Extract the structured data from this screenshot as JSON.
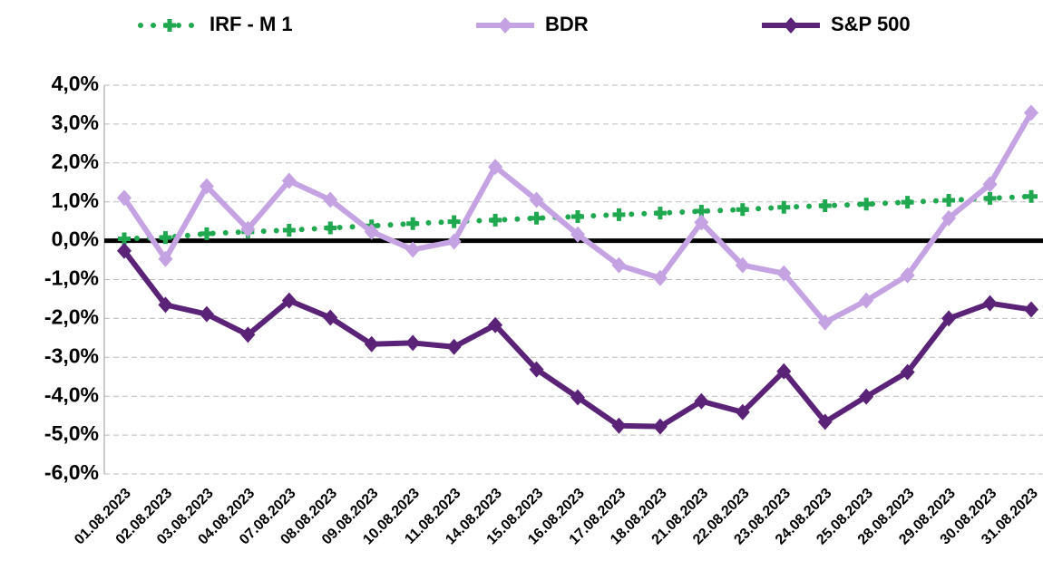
{
  "chart_data": {
    "type": "line",
    "categories": [
      "01.08.2023",
      "02.08.2023",
      "03.08.2023",
      "04.08.2023",
      "07.08.2023",
      "08.08.2023",
      "09.08.2023",
      "10.08.2023",
      "11.08.2023",
      "14.08.2023",
      "15.08.2023",
      "16.08.2023",
      "17.08.2023",
      "18.08.2023",
      "21.08.2023",
      "22.08.2023",
      "23.08.2023",
      "24.08.2023",
      "25.08.2023",
      "28.08.2023",
      "29.08.2023",
      "30.08.2023",
      "31.08.2023"
    ],
    "series": [
      {
        "name": "IRF - M 1",
        "color": "#1fa84f",
        "style": "dotted",
        "marker": "cross",
        "values": [
          0.05,
          0.08,
          0.18,
          0.23,
          0.27,
          0.33,
          0.38,
          0.44,
          0.49,
          0.53,
          0.58,
          0.62,
          0.67,
          0.71,
          0.76,
          0.8,
          0.86,
          0.9,
          0.94,
          0.99,
          1.04,
          1.09,
          1.14
        ]
      },
      {
        "name": "BDR",
        "color": "#c5a3e3",
        "style": "solid",
        "marker": "diamond",
        "values": [
          1.1,
          -0.47,
          1.4,
          0.3,
          1.54,
          1.05,
          0.23,
          -0.23,
          -0.02,
          1.9,
          1.05,
          0.16,
          -0.63,
          -0.96,
          0.47,
          -0.63,
          -0.84,
          -2.1,
          -1.54,
          -0.89,
          0.58,
          1.45,
          3.29
        ]
      },
      {
        "name": "S&P 500",
        "color": "#5b2378",
        "style": "solid",
        "marker": "diamond",
        "values": [
          -0.26,
          -1.65,
          -1.89,
          -2.42,
          -1.54,
          -1.98,
          -2.66,
          -2.63,
          -2.73,
          -2.17,
          -3.31,
          -4.03,
          -4.76,
          -4.78,
          -4.13,
          -4.41,
          -3.36,
          -4.66,
          -4.01,
          -3.38,
          -2.0,
          -1.61,
          -1.77
        ]
      }
    ],
    "ylim": [
      -6,
      4
    ],
    "yticks": [
      {
        "value": 4,
        "label": "4,0%"
      },
      {
        "value": 3,
        "label": "3,0%"
      },
      {
        "value": 2,
        "label": "2,0%"
      },
      {
        "value": 1,
        "label": "1,0%"
      },
      {
        "value": 0,
        "label": "0,0%"
      },
      {
        "value": -1,
        "label": "-1,0%"
      },
      {
        "value": -2,
        "label": "-2,0%"
      },
      {
        "value": -3,
        "label": "-3,0%"
      },
      {
        "value": -4,
        "label": "-4,0%"
      },
      {
        "value": -5,
        "label": "-5,0%"
      },
      {
        "value": -6,
        "label": "-6,0%"
      }
    ],
    "grid": true
  }
}
